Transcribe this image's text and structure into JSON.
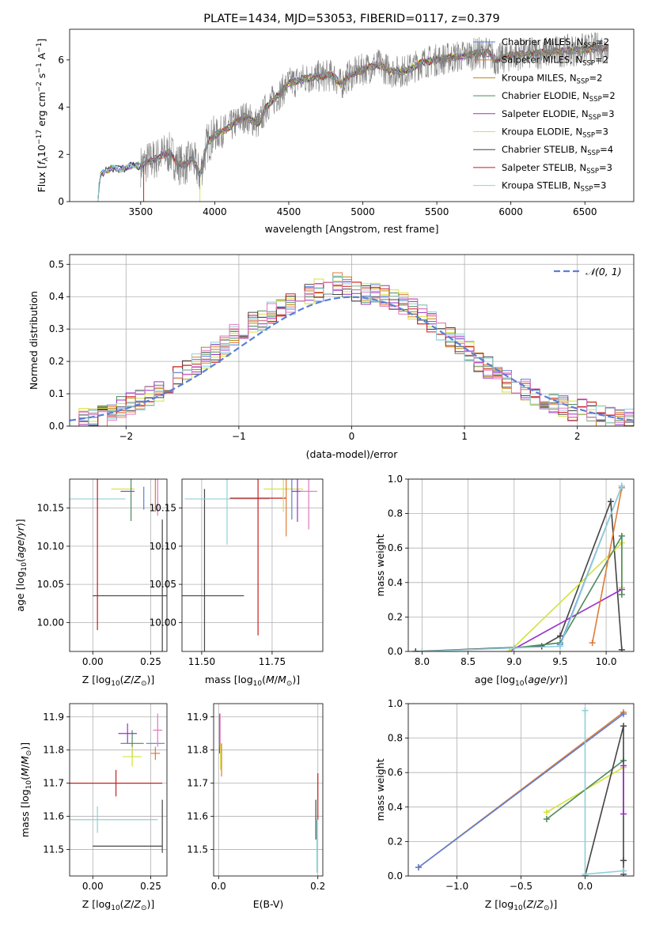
{
  "chart_data": [
    {
      "type": "line",
      "title": "PLATE=1434, MJD=53053, FIBERID=0117, z=0.379",
      "xlabel": "wavelength [Angstrom, rest frame]",
      "ylabel": "Flux [f_λ10^-17 erg cm^-2 s^-1 A^-1]",
      "xlim": [
        3020,
        6830
      ],
      "ylim": [
        0,
        7.3
      ],
      "xticks": [
        "3500",
        "4000",
        "4500",
        "5000",
        "5500",
        "6000",
        "6500"
      ],
      "yticks": [
        "0",
        "2",
        "4",
        "6"
      ],
      "grid": false,
      "legend_position": "top-right",
      "data_points": [
        [
          3200,
          0
        ],
        [
          3230,
          1.15
        ],
        [
          3260,
          1.3
        ],
        [
          3300,
          1.4
        ],
        [
          3350,
          1.4
        ],
        [
          3400,
          1.42
        ],
        [
          3450,
          1.55
        ],
        [
          3500,
          1.5
        ],
        [
          3550,
          1.7
        ],
        [
          3600,
          1.8
        ],
        [
          3650,
          2.0
        ],
        [
          3700,
          2.05
        ],
        [
          3750,
          1.6
        ],
        [
          3800,
          1.55
        ],
        [
          3850,
          1.85
        ],
        [
          3900,
          1.1
        ],
        [
          3950,
          2.5
        ],
        [
          4000,
          2.8
        ],
        [
          4100,
          3.15
        ],
        [
          4200,
          3.6
        ],
        [
          4300,
          3.3
        ],
        [
          4350,
          4.05
        ],
        [
          4400,
          4.3
        ],
        [
          4500,
          5.0
        ],
        [
          4600,
          5.2
        ],
        [
          4700,
          5.3
        ],
        [
          4800,
          5.35
        ],
        [
          4850,
          4.95
        ],
        [
          4900,
          5.3
        ],
        [
          5000,
          5.6
        ],
        [
          5100,
          5.8
        ],
        [
          5200,
          5.5
        ],
        [
          5300,
          5.55
        ],
        [
          5400,
          5.9
        ],
        [
          5500,
          6.0
        ],
        [
          5600,
          6.1
        ],
        [
          5700,
          6.2
        ],
        [
          5800,
          6.3
        ],
        [
          5850,
          6.3
        ],
        [
          5900,
          6.0
        ],
        [
          6000,
          6.2
        ],
        [
          6100,
          6.25
        ],
        [
          6200,
          6.3
        ],
        [
          6300,
          6.35
        ],
        [
          6400,
          6.4
        ],
        [
          6500,
          6.45
        ],
        [
          6600,
          6.5
        ],
        [
          6650,
          6.5
        ]
      ],
      "series": [
        {
          "name": "Chabrier MILES, N_SSP=2",
          "name_main": "Chabrier MILES, N",
          "name_sub": "SSP",
          "name_end": "=2",
          "color": "#5a7fd6"
        },
        {
          "name": "Salpeter MILES, N_SSP=2",
          "name_main": "Salpeter MILES, N",
          "name_sub": "SSP",
          "name_end": "=2",
          "color": "#e07b35"
        },
        {
          "name": "Kroupa MILES, N_SSP=2",
          "name_main": "Kroupa MILES, N",
          "name_sub": "SSP",
          "name_end": "=2",
          "color": "#b8860b"
        },
        {
          "name": "Chabrier ELODIE, N_SSP=2",
          "name_main": "Chabrier ELODIE, N",
          "name_sub": "SSP",
          "name_end": "=2",
          "color": "#4e8a5e"
        },
        {
          "name": "Salpeter ELODIE, N_SSP=3",
          "name_main": "Salpeter ELODIE, N",
          "name_sub": "SSP",
          "name_end": "=3",
          "color": "#9b30c8"
        },
        {
          "name": "Kroupa ELODIE, N_SSP=3",
          "name_main": "Kroupa ELODIE, N",
          "name_sub": "SSP",
          "name_end": "=3",
          "color": "#d4e33a"
        },
        {
          "name": "Chabrier STELIB, N_SSP=4",
          "name_main": "Chabrier STELIB, N",
          "name_sub": "SSP",
          "name_end": "=4",
          "color": "#444444"
        },
        {
          "name": "Salpeter STELIB, N_SSP=3",
          "name_main": "Salpeter STELIB, N",
          "name_sub": "SSP",
          "name_end": "=3",
          "color": "#c81e1e"
        },
        {
          "name": "Kroupa STELIB, N_SSP=3",
          "name_main": "Kroupa STELIB, N",
          "name_sub": "SSP",
          "name_end": "=3",
          "color": "#8fd0d8"
        }
      ]
    },
    {
      "type": "histogram",
      "xlabel": "(data-model)/error",
      "ylabel": "Normed distribution",
      "xlim": [
        -2.5,
        2.5
      ],
      "ylim": [
        0,
        0.53
      ],
      "xticks": [
        "−2",
        "−1",
        "0",
        "1",
        "2"
      ],
      "yticks": [
        "0.0",
        "0.1",
        "0.2",
        "0.3",
        "0.4",
        "0.5"
      ],
      "grid": true,
      "legend_position": "top-right",
      "legend_label": "𝒩(0, 1)",
      "hist_values": [
        0.01,
        0.02,
        0.02,
        0.03,
        0.04,
        0.06,
        0.07,
        0.08,
        0.09,
        0.11,
        0.13,
        0.15,
        0.17,
        0.19,
        0.21,
        0.23,
        0.25,
        0.28,
        0.3,
        0.32,
        0.33,
        0.35,
        0.37,
        0.38,
        0.4,
        0.41,
        0.42,
        0.43,
        0.44,
        0.43,
        0.42,
        0.41,
        0.41,
        0.4,
        0.39,
        0.38,
        0.36,
        0.34,
        0.32,
        0.3,
        0.27,
        0.25,
        0.23,
        0.2,
        0.18,
        0.16,
        0.14,
        0.12,
        0.11,
        0.09,
        0.08,
        0.07,
        0.06,
        0.05,
        0.05,
        0.04,
        0.03,
        0.03,
        0.02,
        0.02
      ]
    },
    {
      "type": "scatter",
      "xlabel": "Z [log10(Z/Z⊙)]",
      "ylabel": "age  [log10(age/yr)]",
      "xlim": [
        -0.1,
        0.32
      ],
      "ylim": [
        9.962,
        10.188
      ],
      "xticks": [
        "0.00",
        "0.25"
      ],
      "yticks": [
        "10.00",
        "10.05",
        "10.10",
        "10.15"
      ],
      "grid": true,
      "errorbars": [
        {
          "x": 0.02,
          "y": 10.162,
          "xerr": 0.12,
          "yerr": 0.0,
          "color": "#8fd0d8"
        },
        {
          "x": 0.13,
          "y": 10.175,
          "xerr": 0.05,
          "yerr": 0.0,
          "color": "#d4e33a"
        },
        {
          "x": 0.15,
          "y": 10.172,
          "xerr": 0.03,
          "yerr": 0.0,
          "color": "#9b30c8"
        },
        {
          "x": 0.165,
          "y": 10.163,
          "xerr": 0.0,
          "yerr": 0.03,
          "color": "#4e8a5e"
        },
        {
          "x": 0.22,
          "y": 10.163,
          "xerr": 0.0,
          "yerr": 0.015,
          "color": "#5a7fd6"
        },
        {
          "x": 0.27,
          "y": 10.175,
          "xerr": 0.0,
          "yerr": 0.03,
          "color": "#e07b35"
        },
        {
          "x": 0.28,
          "y": 10.175,
          "xerr": 0.0,
          "yerr": 0.035,
          "color": "#e377c2"
        },
        {
          "x": 0.3,
          "y": 10.035,
          "xerr": 0.3,
          "yerr": 0.1,
          "color": "#444444"
        },
        {
          "x": 0.02,
          "y": 10.12,
          "xerr": 0.0,
          "yerr": 0.13,
          "color": "#c81e1e"
        }
      ]
    },
    {
      "type": "scatter",
      "xlabel": "mass [log10(M/M⊙)]",
      "ylabel": "",
      "xlim": [
        11.43,
        11.93
      ],
      "ylim": [
        9.962,
        10.188
      ],
      "xticks": [
        "11.50",
        "11.75"
      ],
      "yticks": [
        "10.00",
        "10.05",
        "10.10",
        "10.15"
      ],
      "grid": true,
      "errorbars": [
        {
          "x": 11.51,
          "y": 10.035,
          "xerr": 0.14,
          "yerr": 0.14,
          "color": "#444444"
        },
        {
          "x": 11.59,
          "y": 10.162,
          "xerr": 0.15,
          "yerr": 0.06,
          "color": "#8fd0d8"
        },
        {
          "x": 11.7,
          "y": 10.163,
          "xerr": 0.1,
          "yerr": 0.18,
          "color": "#c81e1e"
        },
        {
          "x": 11.79,
          "y": 10.175,
          "xerr": 0.07,
          "yerr": 0.03,
          "color": "#d4e33a"
        },
        {
          "x": 11.8,
          "y": 10.163,
          "xerr": 0.0,
          "yerr": 0.05,
          "color": "#e07b35"
        },
        {
          "x": 11.82,
          "y": 10.165,
          "xerr": 0.0,
          "yerr": 0.03,
          "color": "#5a7fd6"
        },
        {
          "x": 11.84,
          "y": 10.172,
          "xerr": 0.02,
          "yerr": 0.04,
          "color": "#9b30c8"
        },
        {
          "x": 11.88,
          "y": 10.172,
          "xerr": 0.03,
          "yerr": 0.05,
          "color": "#e377c2"
        }
      ]
    },
    {
      "type": "line",
      "xlabel": "age  [log10(age/yr)]",
      "ylabel": "mass weight",
      "xlim": [
        7.85,
        10.3
      ],
      "ylim": [
        0,
        1.0
      ],
      "xticks": [
        "8.0",
        "8.5",
        "9.0",
        "9.5",
        "10.0"
      ],
      "yticks": [
        "0.0",
        "0.2",
        "0.4",
        "0.6",
        "0.8",
        "1.0"
      ],
      "grid": true,
      "series": [
        {
          "color": "#444444",
          "points": [
            [
              7.93,
              0.0
            ],
            [
              9.3,
              0.03
            ],
            [
              9.5,
              0.09
            ],
            [
              10.05,
              0.87
            ],
            [
              10.17,
              0.01
            ]
          ]
        },
        {
          "color": "#9b30c8",
          "points": [
            [
              8.95,
              0.0
            ],
            [
              10.17,
              0.36
            ]
          ]
        },
        {
          "color": "#d4e33a",
          "points": [
            [
              8.95,
              0.0
            ],
            [
              10.17,
              0.63
            ],
            [
              10.17,
              0.37
            ]
          ]
        },
        {
          "color": "#4e8a5e",
          "points": [
            [
              9.0,
              0.02
            ],
            [
              9.5,
              0.05
            ],
            [
              10.17,
              0.67
            ],
            [
              10.17,
              0.33
            ]
          ]
        },
        {
          "color": "#e07b35",
          "points": [
            [
              9.85,
              0.05
            ],
            [
              10.17,
              0.95
            ]
          ]
        },
        {
          "color": "#5a7fd6",
          "points": [
            [
              9.5,
              0.04
            ],
            [
              10.17,
              0.96
            ]
          ]
        },
        {
          "color": "#8fd0d8",
          "points": [
            [
              8.0,
              0.0
            ],
            [
              9.0,
              0.02
            ],
            [
              9.5,
              0.03
            ],
            [
              10.17,
              0.96
            ]
          ]
        }
      ]
    },
    {
      "type": "scatter",
      "xlabel": "Z [log10(Z/Z⊙)]",
      "ylabel": "mass [log10(M/M⊙)]",
      "xlim": [
        -0.1,
        0.32
      ],
      "ylim": [
        11.42,
        11.94
      ],
      "xticks": [
        "0.00",
        "0.25"
      ],
      "yticks": [
        "11.5",
        "11.6",
        "11.7",
        "11.8",
        "11.9"
      ],
      "grid": true,
      "errorbars": [
        {
          "x": 0.1,
          "y": 11.7,
          "xerr": 0.2,
          "yerr": 0.04,
          "color": "#c81e1e"
        },
        {
          "x": 0.02,
          "y": 11.59,
          "xerr": 0.26,
          "yerr": 0.04,
          "color": "#8fd0d8"
        },
        {
          "x": 0.15,
          "y": 11.51,
          "xerr": 0.15,
          "yerr": 0.0,
          "color": "#444444"
        },
        {
          "x": 0.3,
          "y": 11.57,
          "xerr": 0.0,
          "yerr": 0.08,
          "color": "#444444"
        },
        {
          "x": 0.15,
          "y": 11.85,
          "xerr": 0.04,
          "yerr": 0.03,
          "color": "#9b30c8"
        },
        {
          "x": 0.17,
          "y": 11.82,
          "xerr": 0.05,
          "yerr": 0.04,
          "color": "#4e8a5e"
        },
        {
          "x": 0.17,
          "y": 11.78,
          "xerr": 0.04,
          "yerr": 0.03,
          "color": "#d4e33a"
        },
        {
          "x": 0.27,
          "y": 11.82,
          "xerr": 0.04,
          "yerr": 0.0,
          "color": "#5a7fd6"
        },
        {
          "x": 0.27,
          "y": 11.79,
          "xerr": 0.02,
          "yerr": 0.02,
          "color": "#e07b35"
        },
        {
          "x": 0.28,
          "y": 11.86,
          "xerr": 0.02,
          "yerr": 0.05,
          "color": "#e377c2"
        }
      ]
    },
    {
      "type": "scatter",
      "xlabel": "E(B-V)",
      "ylabel": "",
      "xlim": [
        -0.01,
        0.21
      ],
      "ylim": [
        11.42,
        11.94
      ],
      "xticks": [
        "0.0",
        "0.2"
      ],
      "yticks": [
        "11.5",
        "11.6",
        "11.7",
        "11.8",
        "11.9"
      ],
      "grid": true,
      "errorbars": [
        {
          "x": 0.002,
          "y": 11.85,
          "xerr": 0.0,
          "yerr": 0.06,
          "color": "#9b30c8"
        },
        {
          "x": 0.003,
          "y": 11.86,
          "xerr": 0.0,
          "yerr": 0.05,
          "color": "#e377c2"
        },
        {
          "x": 0.004,
          "y": 11.78,
          "xerr": 0.0,
          "yerr": 0.04,
          "color": "#d4e33a"
        },
        {
          "x": 0.006,
          "y": 11.77,
          "xerr": 0.0,
          "yerr": 0.05,
          "color": "#e07b35"
        },
        {
          "x": 0.196,
          "y": 11.59,
          "xerr": 0.0,
          "yerr": 0.06,
          "color": "#444444"
        },
        {
          "x": 0.198,
          "y": 11.51,
          "xerr": 0.0,
          "yerr": 0.08,
          "color": "#8fd0d8"
        },
        {
          "x": 0.2,
          "y": 11.66,
          "xerr": 0.0,
          "yerr": 0.07,
          "color": "#c81e1e"
        }
      ]
    },
    {
      "type": "line",
      "xlabel": "Z [log10(Z/Z⊙)]",
      "ylabel": "mass weight",
      "xlim": [
        -1.38,
        0.38
      ],
      "ylim": [
        0,
        1.0
      ],
      "xticks": [
        "−1.0",
        "−0.5",
        "0.0"
      ],
      "yticks": [
        "0.0",
        "0.2",
        "0.4",
        "0.6",
        "0.8",
        "1.0"
      ],
      "grid": true,
      "series": [
        {
          "color": "#e07b35",
          "points": [
            [
              -1.3,
              0.05
            ],
            [
              0.3,
              0.95
            ]
          ]
        },
        {
          "color": "#5a7fd6",
          "points": [
            [
              -1.3,
              0.05
            ],
            [
              0.3,
              0.94
            ]
          ]
        },
        {
          "color": "#d4e33a",
          "points": [
            [
              -0.3,
              0.37
            ],
            [
              0.3,
              0.63
            ]
          ]
        },
        {
          "color": "#4e8a5e",
          "points": [
            [
              -0.3,
              0.33
            ],
            [
              0.3,
              0.67
            ]
          ]
        },
        {
          "color": "#444444",
          "points": [
            [
              0.0,
              0.0
            ],
            [
              0.3,
              0.87
            ],
            [
              0.3,
              0.09
            ],
            [
              0.3,
              0.01
            ]
          ]
        },
        {
          "color": "#9b30c8",
          "points": [
            [
              0.3,
              0.36
            ],
            [
              0.3,
              0.64
            ]
          ]
        },
        {
          "color": "#8fd0d8",
          "points": [
            [
              0.0,
              0.96
            ],
            [
              0.0,
              0.01
            ],
            [
              0.3,
              0.03
            ]
          ]
        }
      ]
    }
  ]
}
